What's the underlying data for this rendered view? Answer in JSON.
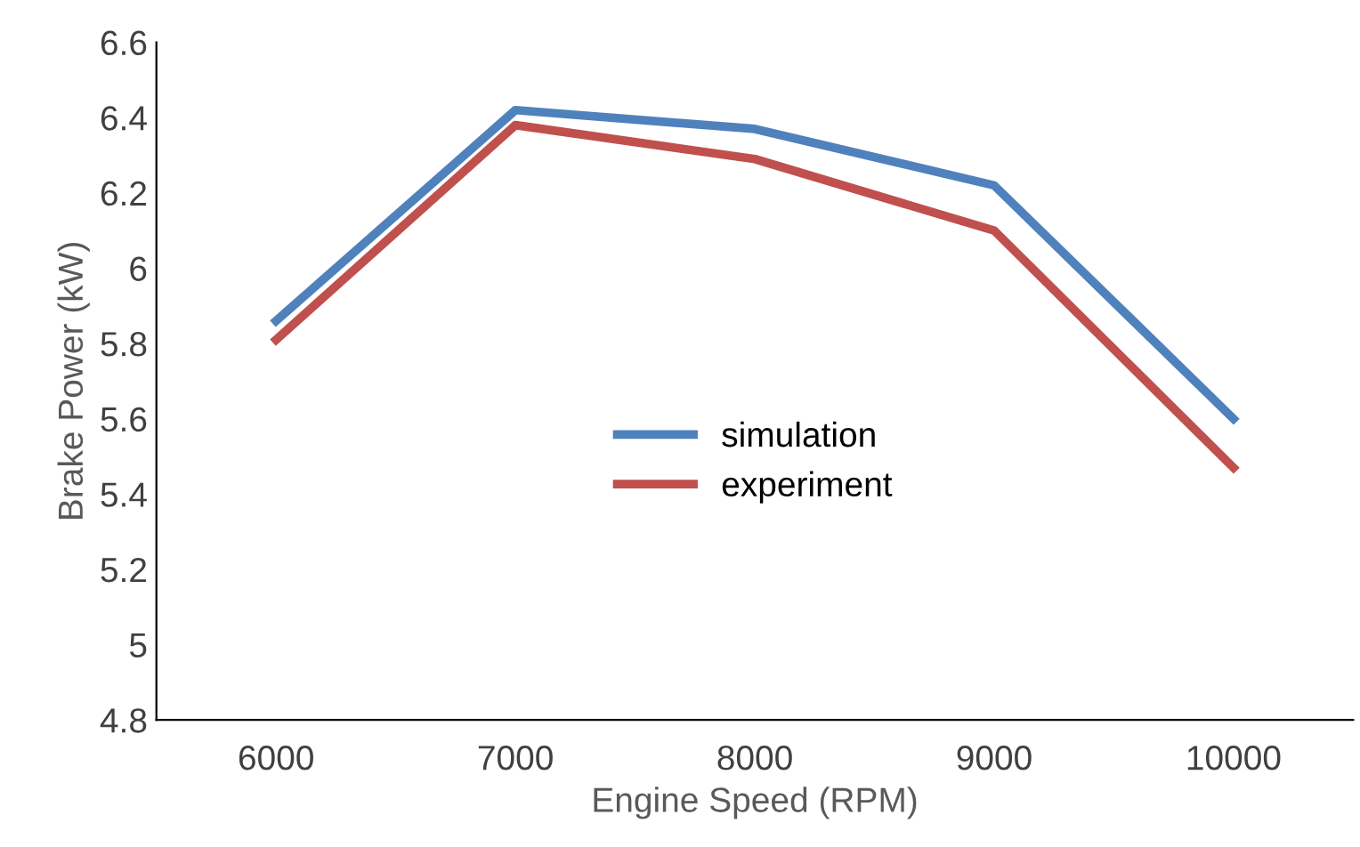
{
  "chart_data": {
    "type": "line",
    "xlabel": "Engine Speed (RPM)",
    "ylabel": "Brake Power (kW)",
    "categories": [
      "6000",
      "7000",
      "8000",
      "9000",
      "10000"
    ],
    "series": [
      {
        "name": "simulation",
        "color": "#4f81bd",
        "values": [
          5.86,
          6.42,
          6.37,
          6.22,
          5.6
        ]
      },
      {
        "name": "experiment",
        "color": "#c0504d",
        "values": [
          5.81,
          6.38,
          6.29,
          6.1,
          5.47
        ]
      }
    ],
    "ylim": [
      4.8,
      6.6
    ],
    "yticks": [
      4.8,
      5,
      5.2,
      5.4,
      5.6,
      5.8,
      6,
      6.2,
      6.4,
      6.6
    ],
    "grid": false,
    "legend": "center",
    "marker": "none",
    "line_style": "solid"
  }
}
